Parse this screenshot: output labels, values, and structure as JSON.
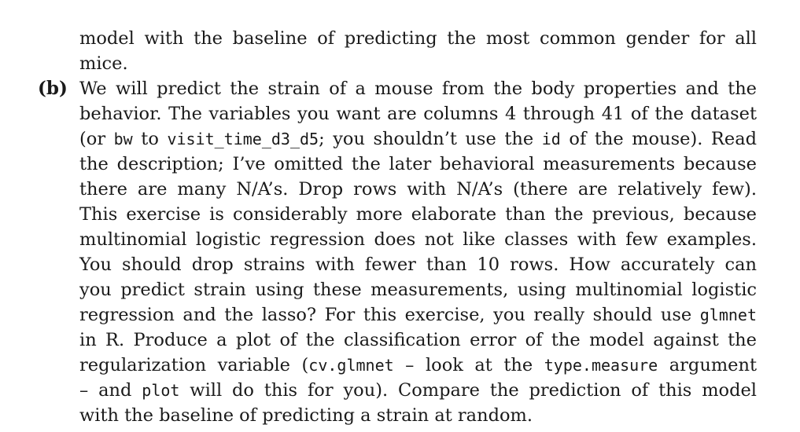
{
  "continuation": {
    "lines": [
      "model with the baseline of predicting the most common gender for all",
      "mice."
    ]
  },
  "item_b": {
    "label": "(b)",
    "lines": [
      "We will predict the strain of a mouse from the body properties and the",
      "behavior. The variables you want are columns 4 through 41 of the dataset",
      {
        "pre": "(or ",
        "c1": "bw",
        "mid1": " to ",
        "c2": "visit_time_d3_d5",
        "mid2": "; you shouldn’t use the ",
        "c3": "id",
        "post": " of the mouse). Read"
      },
      "the description; I’ve omitted the later behavioral measurements because",
      "there are many N/A’s. Drop rows with N/A’s (there are relatively few).",
      "This exercise is considerably more elaborate than the previous, because",
      "multinomial logistic regression does not like classes with few examples.",
      "You should drop strains with fewer than 10 rows. How accurately can",
      "you predict strain using these measurements, using multinomial logistic",
      {
        "pre": "regression and the lasso? For this exercise, you really should use ",
        "c1": "glmnet"
      },
      "in R. Produce a plot of the classification error of the model against the",
      {
        "pre": "regularization variable (",
        "c1": "cv.glmnet",
        "mid1": " – look at the ",
        "c2": "type.measure",
        "post": " argument"
      },
      {
        "pre": "– and ",
        "c1": "plot",
        "post": " will do this for you). Compare the prediction of this model"
      },
      "with the baseline of predicting a strain at random."
    ]
  }
}
